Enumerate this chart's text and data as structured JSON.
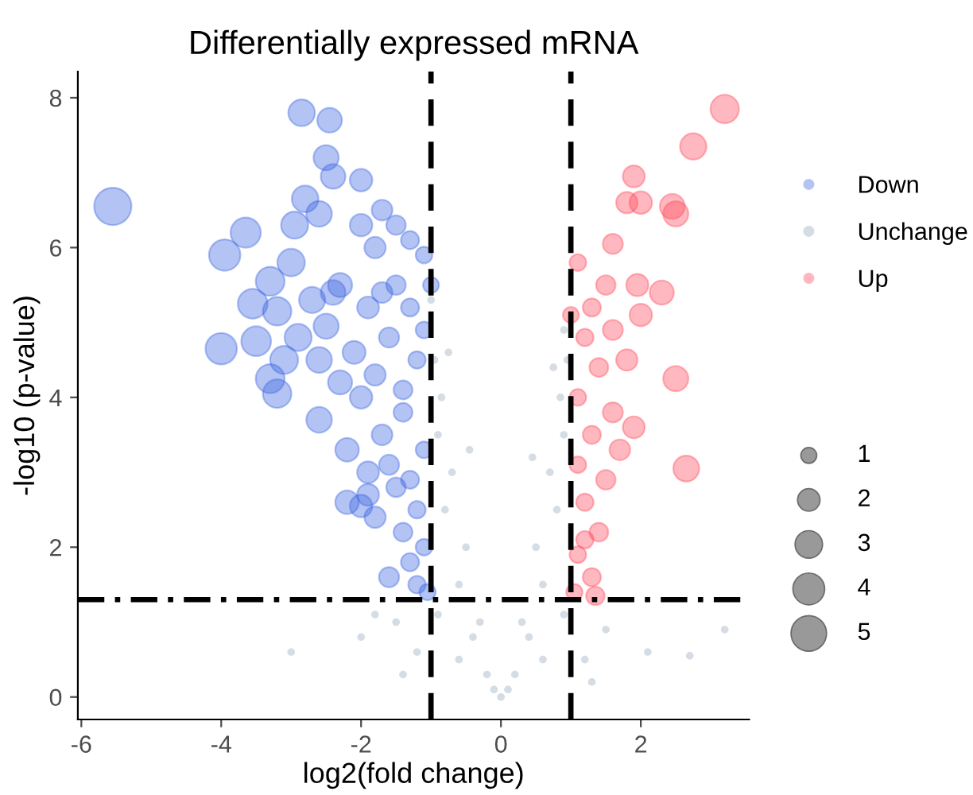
{
  "chart_data": {
    "type": "bubble",
    "title": "Differentially expressed mRNA",
    "xlabel": "log2(fold change)",
    "ylabel": "-log10 (p-value)",
    "xlim": [
      -6.05,
      3.55
    ],
    "ylim": [
      -0.3,
      8.35
    ],
    "xticks": [
      -6,
      -4,
      -2,
      0,
      2
    ],
    "yticks": [
      0,
      2,
      4,
      6,
      8
    ],
    "grid": false,
    "legend": "right",
    "marker": "circle",
    "size_legend": [
      1,
      2,
      3,
      4,
      5
    ],
    "ref_lines": [
      {
        "axis": "x",
        "value": -1,
        "line_style": "dashed",
        "color": "#000000"
      },
      {
        "axis": "x",
        "value": 1,
        "line_style": "dashed",
        "color": "#000000"
      },
      {
        "axis": "y",
        "value": 1.3,
        "line_style": "dashdot",
        "color": "#000000"
      }
    ],
    "series": [
      {
        "name": "Down",
        "color": "#4169e1",
        "x": [
          -5.55,
          -3.65,
          -3.95,
          -4.0,
          -3.55,
          -3.5,
          -3.2,
          -3.0,
          -2.95,
          -2.85,
          -2.6,
          -2.8,
          -2.45,
          -2.5,
          -2.4,
          -2.0,
          -3.3,
          -3.2,
          -3.3,
          -2.6,
          -2.2,
          -2.5,
          -2.3,
          -2.0,
          -1.8,
          -1.5,
          -1.3,
          -1.6,
          -1.2,
          -1.8,
          -2.0,
          -1.4,
          -1.7,
          -1.1,
          -1.9,
          -1.5,
          -1.2,
          -1.8,
          -1.4,
          -1.1,
          -2.0,
          -1.3,
          -1.6,
          -1.2,
          -1.05,
          -1.1,
          -1.3,
          -1.5,
          -1.9,
          -2.1,
          -1.7,
          -1.1,
          -1.9,
          -2.2,
          -1.6,
          -1.3,
          -1.0,
          -1.4,
          -2.3,
          -1.7,
          -2.6,
          -2.4,
          -2.9,
          -3.1,
          -2.7
        ],
        "values": [
          6.55,
          6.2,
          5.9,
          4.65,
          5.25,
          4.75,
          5.15,
          5.8,
          6.3,
          7.8,
          6.45,
          6.65,
          7.7,
          7.2,
          6.95,
          6.9,
          4.25,
          4.05,
          5.55,
          3.7,
          3.3,
          4.95,
          5.5,
          6.3,
          6.0,
          5.5,
          5.2,
          4.8,
          4.5,
          4.3,
          4.0,
          3.8,
          3.5,
          3.3,
          3.0,
          2.8,
          2.5,
          2.4,
          2.2,
          2.0,
          2.55,
          1.8,
          1.6,
          1.5,
          1.4,
          5.9,
          6.1,
          6.3,
          5.2,
          4.6,
          5.4,
          4.9,
          2.7,
          2.6,
          3.1,
          2.9,
          5.5,
          4.1,
          4.2,
          6.5,
          4.5,
          5.4,
          4.8,
          4.5,
          5.3
        ],
        "sizes": [
          5.5,
          3.6,
          3.9,
          3.9,
          3.5,
          3.5,
          3.2,
          3.0,
          2.9,
          2.8,
          2.6,
          2.8,
          2.4,
          2.5,
          2.4,
          2.0,
          3.3,
          3.2,
          3.3,
          2.6,
          2.2,
          2.5,
          2.3,
          2.0,
          1.8,
          1.5,
          1.3,
          1.6,
          1.2,
          1.8,
          2.0,
          1.4,
          1.7,
          1.1,
          1.9,
          1.5,
          1.2,
          1.8,
          1.4,
          1.1,
          2.0,
          1.3,
          1.6,
          1.2,
          1.05,
          1.1,
          1.3,
          1.5,
          1.9,
          2.1,
          1.7,
          1.1,
          1.9,
          2.2,
          1.6,
          1.3,
          1.0,
          1.4,
          2.3,
          1.7,
          2.6,
          2.4,
          2.9,
          3.1,
          2.7
        ]
      },
      {
        "name": "Unchange",
        "type": "scatter",
        "color": "#cbd3dc",
        "x": [
          0,
          -0.2,
          0.2,
          -0.4,
          0.4,
          -0.6,
          0.6,
          -0.8,
          0.8,
          -0.9,
          0.9,
          -0.95,
          0.95,
          -1.0,
          0.9,
          -0.5,
          0.5,
          -0.3,
          0.3,
          -0.7,
          0.7,
          -0.85,
          0.85,
          -0.1,
          0.1,
          -1.5,
          -2.0,
          -1.2,
          1.2,
          1.5,
          -1.8,
          -3.0,
          2.1,
          2.7,
          3.2,
          -1.4,
          1.3,
          -0.9,
          0.9,
          -0.6,
          0.6,
          -0.75,
          0.75,
          -0.45,
          0.45
        ],
        "values": [
          0,
          0.3,
          0.3,
          0.8,
          0.8,
          1.5,
          1.5,
          2.5,
          2.5,
          3.5,
          3.5,
          4.5,
          4.5,
          5.3,
          4.9,
          2.0,
          2.0,
          1.0,
          1.0,
          3.0,
          3.0,
          4.0,
          4.0,
          0.1,
          0.1,
          1.0,
          0.8,
          0.6,
          0.5,
          0.9,
          1.1,
          0.6,
          0.6,
          0.55,
          0.9,
          0.3,
          0.2,
          1.1,
          1.1,
          0.5,
          0.5,
          4.6,
          4.4,
          3.3,
          3.2
        ]
      },
      {
        "name": "Up",
        "color": "#ff4d5e",
        "x": [
          3.2,
          2.75,
          2.45,
          2.5,
          1.9,
          2.0,
          1.8,
          2.3,
          2.0,
          1.95,
          2.5,
          2.65,
          1.9,
          1.6,
          1.5,
          1.3,
          1.1,
          1.2,
          1.4,
          1.1,
          1.6,
          1.3,
          1.1,
          1.5,
          1.2,
          1.4,
          1.1,
          1.3,
          1.05,
          1.6,
          1.8,
          1.7,
          1.0,
          1.2,
          1.35
        ],
        "values": [
          7.85,
          7.35,
          6.55,
          6.45,
          6.95,
          6.6,
          6.6,
          5.4,
          5.1,
          5.5,
          4.25,
          3.05,
          3.6,
          6.05,
          5.5,
          5.2,
          5.8,
          4.8,
          4.4,
          4.0,
          3.8,
          3.5,
          3.1,
          2.9,
          2.6,
          2.2,
          1.9,
          1.6,
          1.4,
          4.9,
          4.5,
          3.3,
          5.1,
          2.1,
          1.35
        ],
        "sizes": [
          3.2,
          2.75,
          2.45,
          2.5,
          1.9,
          2.0,
          1.8,
          2.3,
          2.0,
          1.95,
          2.5,
          2.65,
          1.9,
          1.6,
          1.5,
          1.3,
          1.1,
          1.2,
          1.4,
          1.1,
          1.6,
          1.3,
          1.1,
          1.5,
          1.2,
          1.4,
          1.1,
          1.3,
          1.05,
          1.6,
          1.8,
          1.7,
          1.0,
          1.2,
          1.35
        ]
      }
    ]
  }
}
